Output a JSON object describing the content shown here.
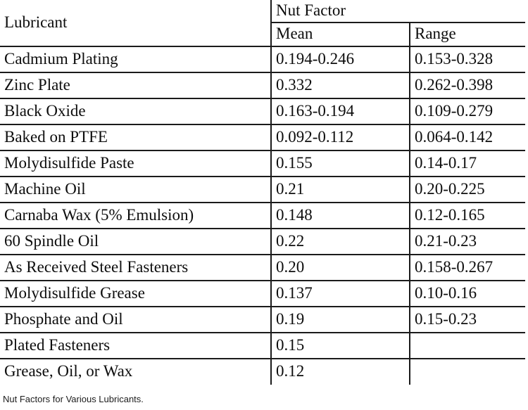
{
  "table": {
    "col1_header": "Lubricant",
    "group_header": "Nut Factor",
    "sub_headers": [
      "Mean",
      "Range"
    ],
    "rows": [
      {
        "lubricant": "Cadmium Plating",
        "mean": "0.194-0.246",
        "range": "0.153-0.328"
      },
      {
        "lubricant": "Zinc Plate",
        "mean": "0.332",
        "range": "0.262-0.398"
      },
      {
        "lubricant": "Black Oxide",
        "mean": "0.163-0.194",
        "range": "0.109-0.279"
      },
      {
        "lubricant": "Baked on PTFE",
        "mean": "0.092-0.112",
        "range": "0.064-0.142"
      },
      {
        "lubricant": "Molydisulfide Paste",
        "mean": "0.155",
        "range": "0.14-0.17"
      },
      {
        "lubricant": "Machine Oil",
        "mean": "0.21",
        "range": "0.20-0.225"
      },
      {
        "lubricant": "Carnaba Wax (5% Emulsion)",
        "mean": "0.148",
        "range": "0.12-0.165"
      },
      {
        "lubricant": "60 Spindle Oil",
        "mean": "0.22",
        "range": "0.21-0.23"
      },
      {
        "lubricant": "As Received Steel Fasteners",
        "mean": "0.20",
        "range": "0.158-0.267"
      },
      {
        "lubricant": "Molydisulfide Grease",
        "mean": "0.137",
        "range": "0.10-0.16"
      },
      {
        "lubricant": "Phosphate and Oil",
        "mean": "0.19",
        "range": "0.15-0.23"
      },
      {
        "lubricant": "Plated Fasteners",
        "mean": "0.15",
        "range": ""
      },
      {
        "lubricant": "Grease, Oil, or Wax",
        "mean": "0.12",
        "range": ""
      }
    ]
  },
  "caption": "Nut Factors for Various Lubricants.",
  "colors": {
    "background": "#ffffff",
    "text": "#0d0d0d",
    "border": "#1b1b1b"
  }
}
